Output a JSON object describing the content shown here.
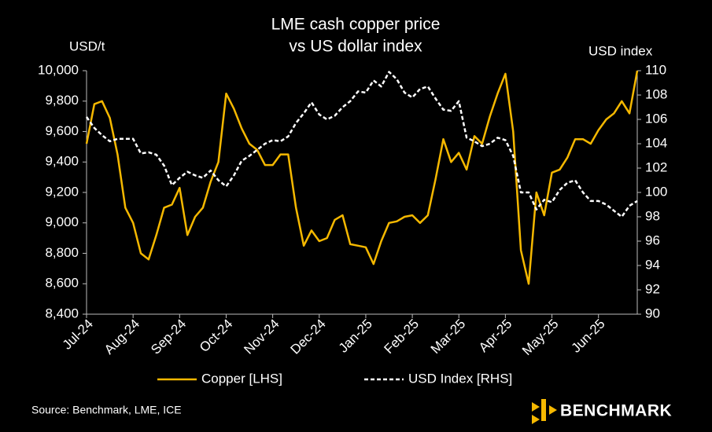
{
  "chart_data": {
    "type": "line",
    "title": [
      "LME cash copper price",
      "vs US dollar index"
    ],
    "y_label": "USD/t",
    "y2_label": "USD index",
    "xlim": [
      0,
      71
    ],
    "xticks": [
      {
        "value": 0,
        "label": "Jul-24"
      },
      {
        "value": 6,
        "label": "Aug-24"
      },
      {
        "value": 12,
        "label": "Sep-24"
      },
      {
        "value": 18,
        "label": "Oct-24"
      },
      {
        "value": 24,
        "label": "Nov-24"
      },
      {
        "value": 30,
        "label": "Dec-24"
      },
      {
        "value": 36,
        "label": "Jan-25"
      },
      {
        "value": 42,
        "label": "Feb-25"
      },
      {
        "value": 48,
        "label": "Mar-25"
      },
      {
        "value": 54,
        "label": "Apr-25"
      },
      {
        "value": 60,
        "label": "May-25"
      },
      {
        "value": 66,
        "label": "Jun-25"
      }
    ],
    "ylim": [
      8400,
      10000
    ],
    "yticks": [
      {
        "value": 8400,
        "label": "8,400"
      },
      {
        "value": 8600,
        "label": "8,600"
      },
      {
        "value": 8800,
        "label": "8,800"
      },
      {
        "value": 9000,
        "label": "9,000"
      },
      {
        "value": 9200,
        "label": "9,200"
      },
      {
        "value": 9400,
        "label": "9,400"
      },
      {
        "value": 9600,
        "label": "9,600"
      },
      {
        "value": 9800,
        "label": "9,800"
      },
      {
        "value": 10000,
        "label": "10,000"
      }
    ],
    "y2lim": [
      90,
      110
    ],
    "y2ticks": [
      90,
      92,
      94,
      96,
      98,
      100,
      102,
      104,
      106,
      108,
      110
    ],
    "grid": false,
    "legend": "bottom",
    "series": [
      {
        "name": "Copper [LHS]",
        "color": "#f5b800",
        "dashed": false,
        "axis": "y",
        "values": [
          9520,
          9780,
          9800,
          9690,
          9450,
          9100,
          9000,
          8800,
          8760,
          8920,
          9100,
          9120,
          9230,
          8920,
          9040,
          9100,
          9270,
          9400,
          9850,
          9750,
          9620,
          9520,
          9480,
          9380,
          9380,
          9450,
          9450,
          9100,
          8850,
          8950,
          8880,
          8900,
          9020,
          9050,
          8860,
          8850,
          8840,
          8730,
          8880,
          9000,
          9010,
          9040,
          9050,
          9000,
          9050,
          9290,
          9550,
          9400,
          9460,
          9350,
          9570,
          9520,
          9700,
          9850,
          9980,
          9600,
          8820,
          8600,
          9200,
          9050,
          9330,
          9350,
          9430,
          9550,
          9550,
          9520,
          9610,
          9680,
          9720,
          9800,
          9720,
          10000
        ]
      },
      {
        "name": "USD Index [RHS]",
        "color": "#ffffff",
        "dashed": true,
        "axis": "y2",
        "values": [
          106.2,
          105.3,
          104.7,
          104.2,
          104.4,
          104.4,
          104.4,
          103.2,
          103.3,
          103.1,
          102.2,
          100.6,
          101.2,
          101.7,
          101.4,
          101.2,
          101.8,
          101,
          100.5,
          101.4,
          102.6,
          103,
          103.5,
          104,
          104.3,
          104.2,
          104.6,
          105.7,
          106.5,
          107.4,
          106.4,
          106,
          106.3,
          107,
          107.5,
          108.3,
          108.2,
          109.2,
          108.7,
          109.9,
          109.3,
          108.2,
          107.8,
          108.5,
          108.7,
          107.7,
          106.8,
          106.7,
          107.5,
          104.5,
          104.2,
          103.8,
          104,
          104.5,
          104.3,
          103,
          100,
          100,
          98.6,
          99.4,
          99.2,
          100.2,
          100.8,
          101,
          100,
          99.3,
          99.3,
          99,
          98.5,
          98,
          98.9,
          99.3
        ]
      }
    ],
    "source": "Source: Benchmark, LME, ICE",
    "logo": "BENCHMARK"
  }
}
